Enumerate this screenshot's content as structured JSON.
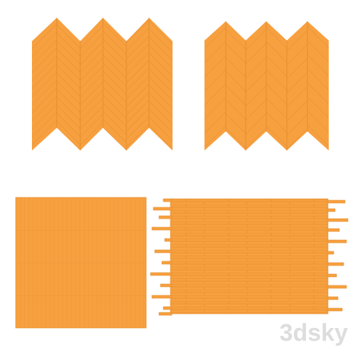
{
  "watermark": "3dsky"
}
